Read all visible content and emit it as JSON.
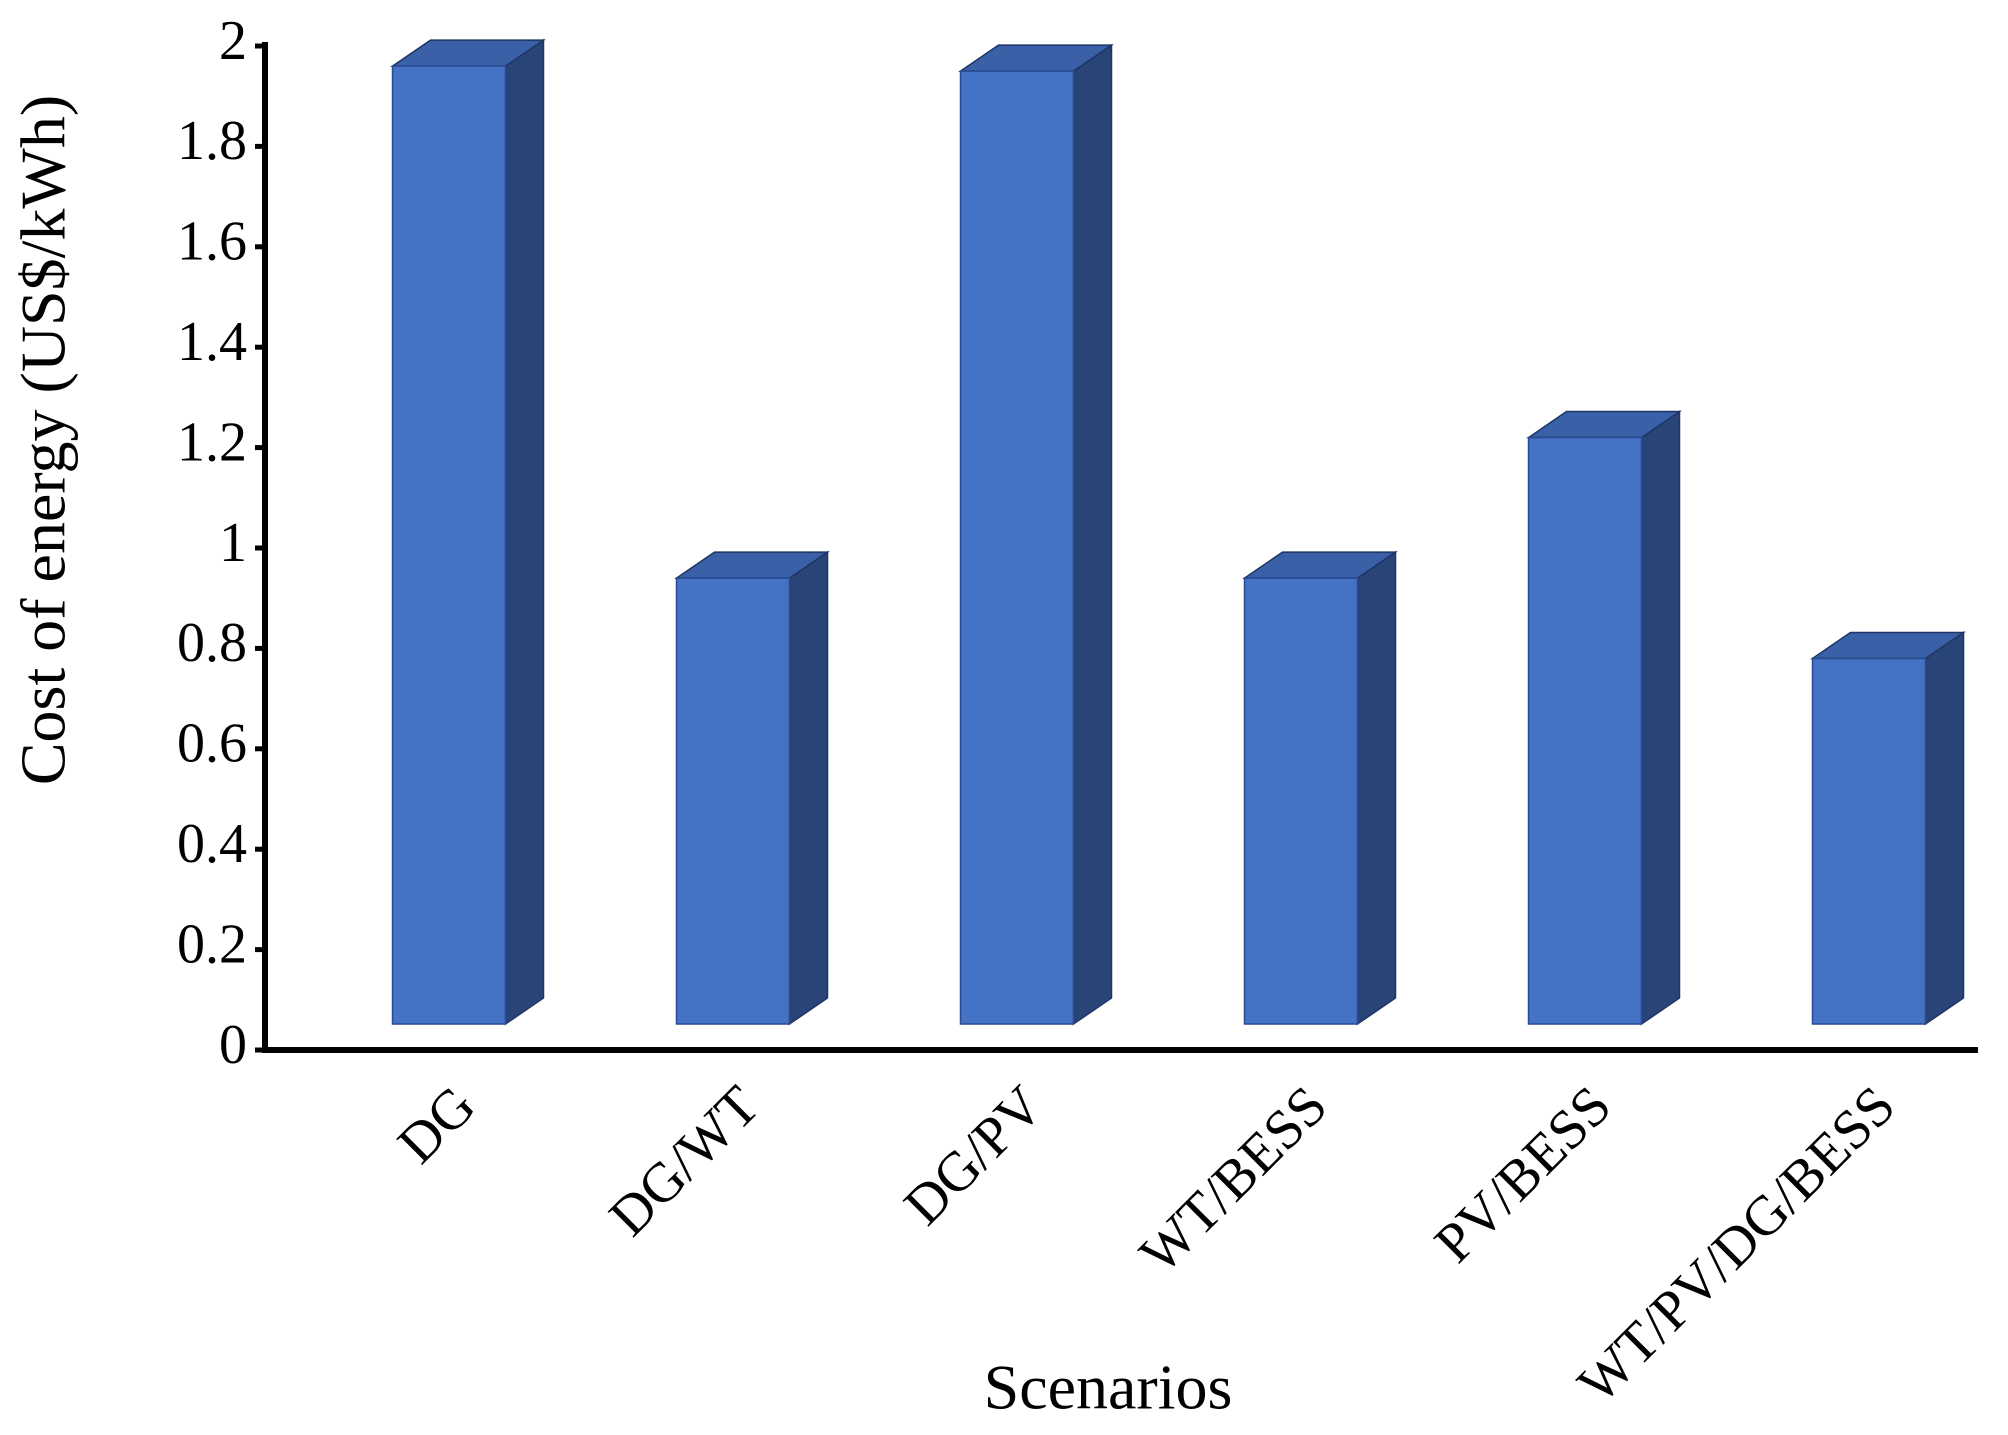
{
  "chart_data": {
    "type": "bar3d",
    "xlabel": "Scenarios",
    "ylabel": "Cost of energy (US$/kWh)",
    "categories": [
      "DG",
      "DG/WT",
      "DG/PV",
      "WT/BESS",
      "PV/BESS",
      "WT/PV/DG/BESS"
    ],
    "values": [
      1.96,
      0.94,
      1.95,
      0.94,
      1.22,
      0.78
    ],
    "color": "#4472c4",
    "ylim": [
      0,
      2
    ],
    "yticks": [
      0,
      0.2,
      0.4,
      0.6,
      0.8,
      1,
      1.2,
      1.4,
      1.6,
      1.8,
      2
    ],
    "grid": false
  }
}
